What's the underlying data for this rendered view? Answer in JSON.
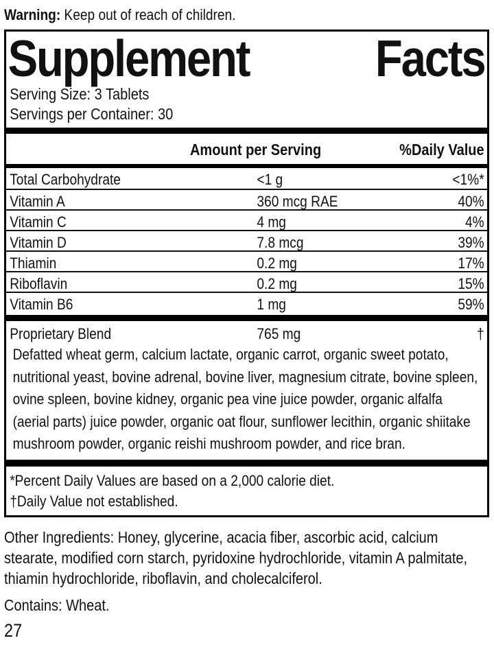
{
  "warning": {
    "label": "Warning:",
    "text": "Keep out of reach of children."
  },
  "panel": {
    "title": {
      "word1": "Supplement",
      "word2": "Facts"
    },
    "serving_size": "Serving Size: 3 Tablets",
    "servings_per_container": "Servings per Container: 30",
    "columns": {
      "amount": "Amount per Serving",
      "daily_value": "%Daily Value"
    },
    "rows": [
      {
        "name": "Total Carbohydrate",
        "amount": "<1 g",
        "dv": "<1%*"
      },
      {
        "name": "Vitamin A",
        "amount": "360 mcg RAE",
        "dv": "40%"
      },
      {
        "name": "Vitamin C",
        "amount": "4 mg",
        "dv": "4%"
      },
      {
        "name": "Vitamin D",
        "amount": "7.8 mcg",
        "dv": "39%"
      },
      {
        "name": "Thiamin",
        "amount": "0.2 mg",
        "dv": "17%"
      },
      {
        "name": "Riboflavin",
        "amount": "0.2 mg",
        "dv": "15%"
      },
      {
        "name": "Vitamin B6",
        "amount": "1 mg",
        "dv": "59%"
      }
    ],
    "blend": {
      "name": "Proprietary Blend",
      "amount": "765 mg",
      "dv": "†",
      "description": "Defatted wheat germ, calcium lactate, organic carrot, organic sweet potato, nutritional yeast, bovine adrenal, bovine liver, magnesium citrate, bovine spleen, ovine spleen, bovine kidney, organic pea vine juice powder, organic alfalfa (aerial parts) juice powder, organic oat flour, sunflower lecithin, organic shiitake mushroom powder, organic reishi mushroom powder, and rice bran."
    },
    "footnotes": [
      "*Percent Daily Values are based on a 2,000 calorie diet.",
      "†Daily Value not established."
    ]
  },
  "other_ingredients": "Other Ingredients: Honey, glycerine, acacia fiber, ascorbic acid, calcium stearate,  modified corn starch, pyridoxine hydrochloride, vitamin A palmitate, thiamin hydrochloride, riboflavin, and cholecalciferol.",
  "contains": "Contains: Wheat.",
  "page_number": "27",
  "colors": {
    "text": "#111111",
    "rule": "#000000",
    "background": "#ffffff"
  }
}
